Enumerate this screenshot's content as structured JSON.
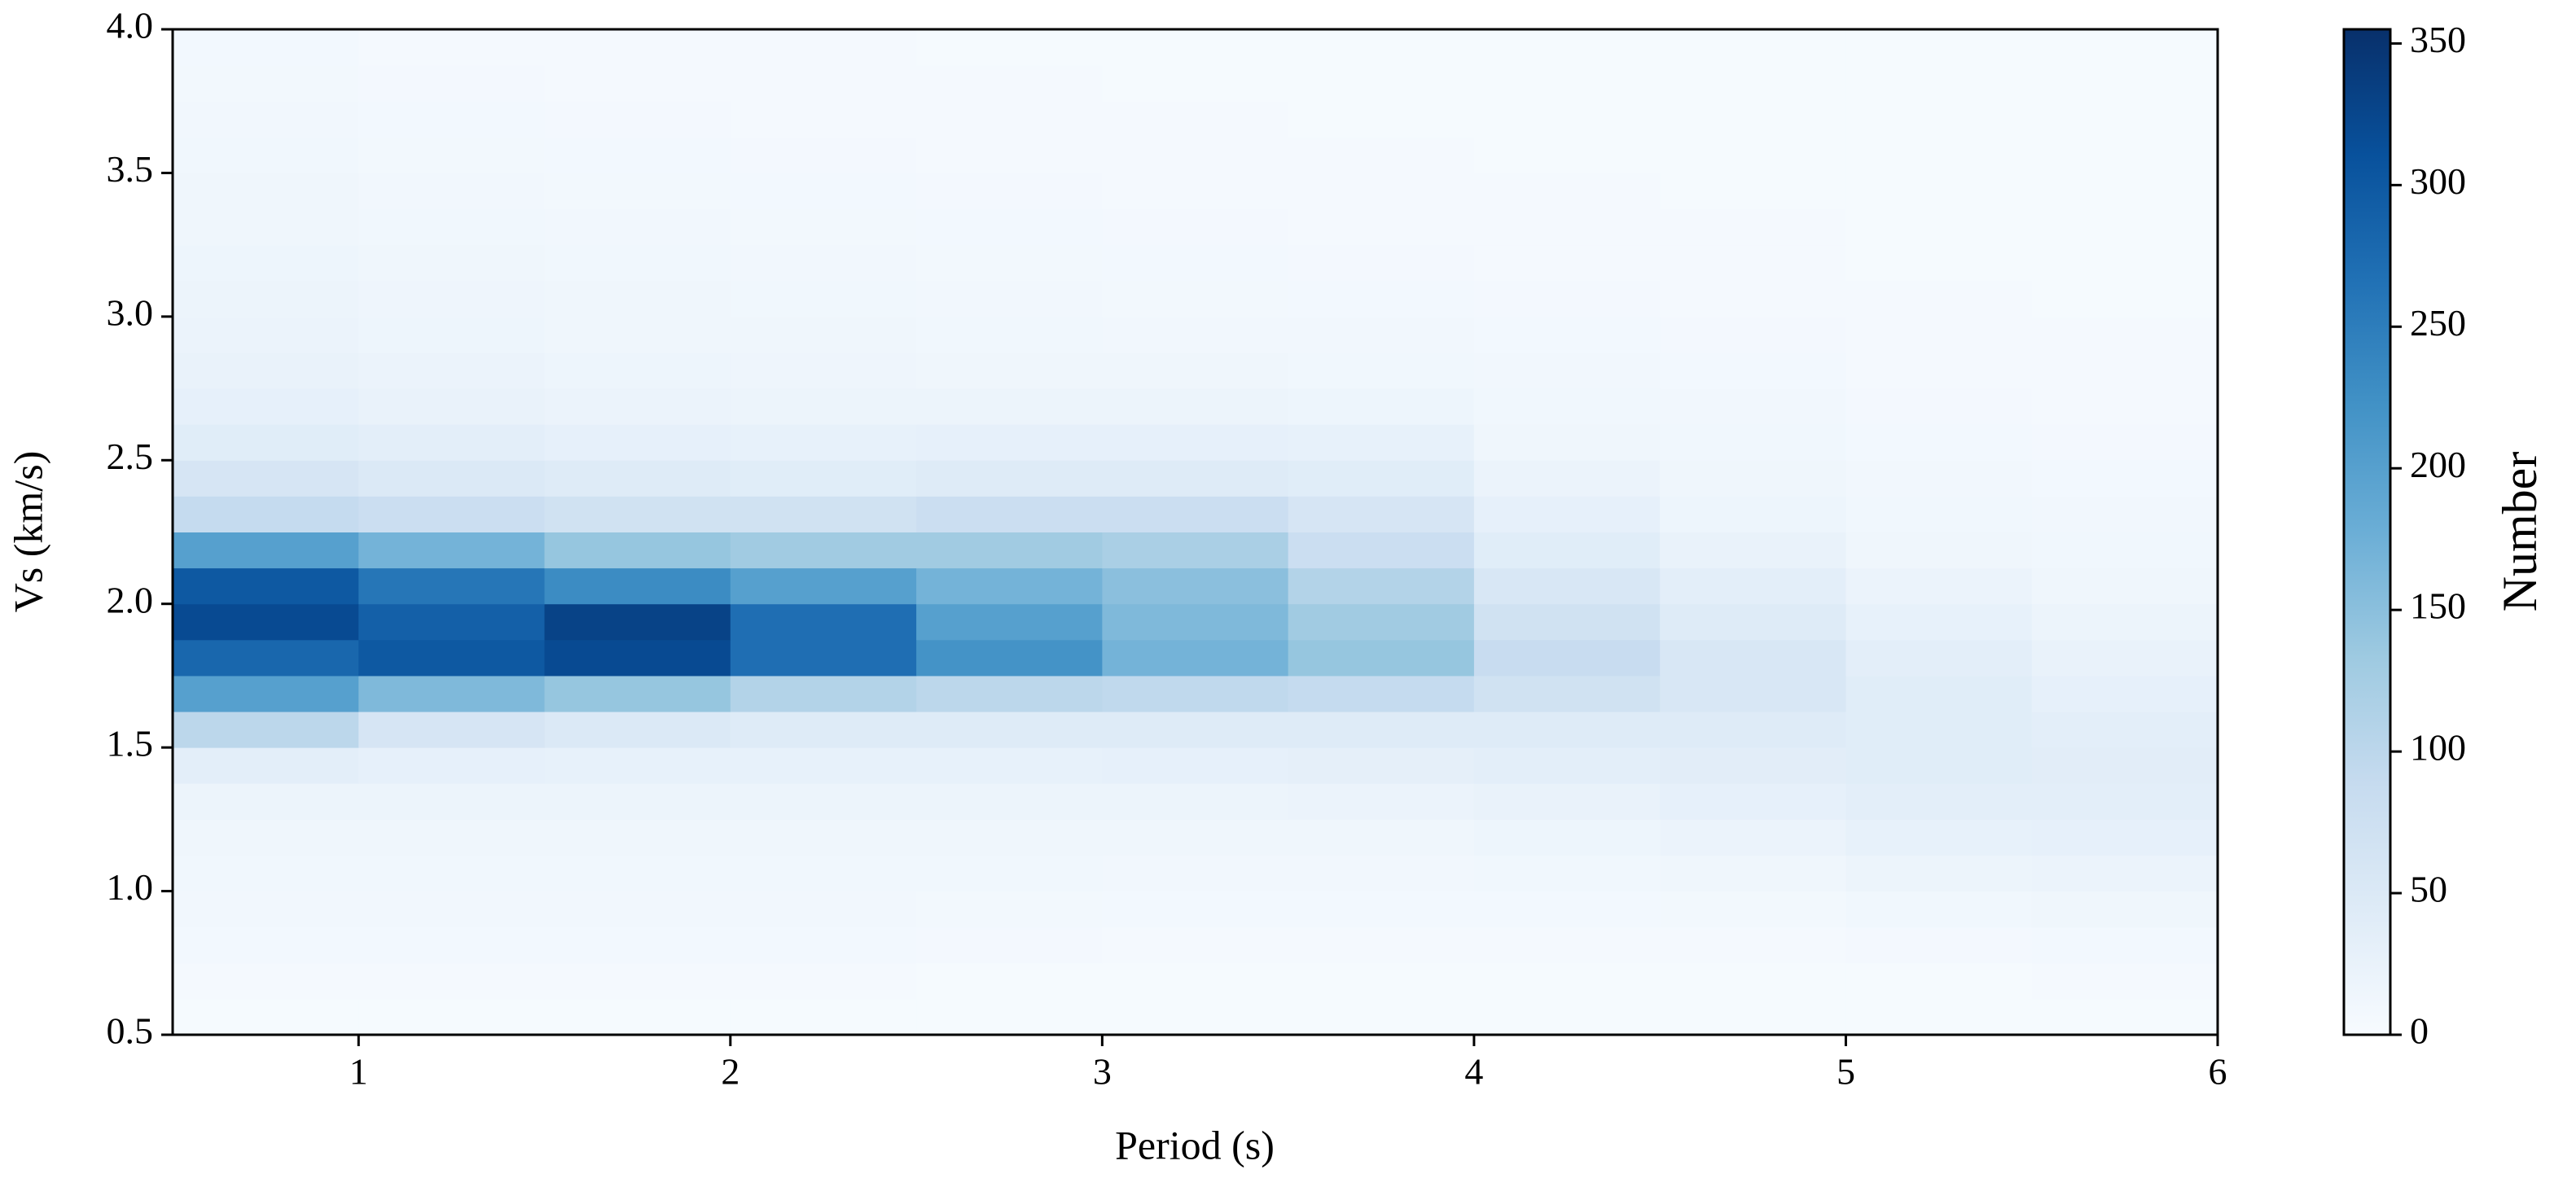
{
  "chart_data": {
    "type": "heatmap",
    "xlabel": "Period (s)",
    "ylabel": "Vs (km/s)",
    "xlim": [
      0.5,
      6
    ],
    "xticks": [
      1,
      2,
      3,
      4,
      5,
      6
    ],
    "ylim": [
      0.5,
      4
    ],
    "yticks": [
      0.5,
      {
        "value": 1,
        "label": "1.0"
      },
      1.5,
      {
        "value": 2,
        "label": "2.0"
      },
      2.5,
      {
        "value": 3,
        "label": "3.0"
      },
      3.5,
      {
        "value": 4,
        "label": "4.0"
      }
    ],
    "x_edges": [
      0.5,
      1,
      1.5,
      2,
      2.5,
      3,
      3.5,
      4,
      4.5,
      5,
      5.5,
      6
    ],
    "y_edges": [
      0.5,
      0.625,
      0.75,
      0.875,
      1,
      1.125,
      1.25,
      1.375,
      1.5,
      1.625,
      1.75,
      1.875,
      2,
      2.125,
      2.25,
      2.375,
      2.5,
      2.625,
      2.75,
      2.875,
      3,
      3.125,
      3.25,
      3.375,
      3.5,
      3.625,
      3.75,
      3.875,
      4
    ],
    "values": [
      [
        3,
        3,
        3,
        3,
        3,
        3,
        3,
        3,
        3,
        3,
        3
      ],
      [
        5,
        5,
        5,
        5,
        4,
        4,
        4,
        4,
        4,
        4,
        5
      ],
      [
        8,
        8,
        8,
        8,
        7,
        6,
        6,
        6,
        6,
        7,
        8
      ],
      [
        10,
        10,
        10,
        10,
        9,
        8,
        8,
        8,
        9,
        12,
        15
      ],
      [
        12,
        12,
        12,
        12,
        12,
        10,
        10,
        12,
        15,
        20,
        22
      ],
      [
        15,
        15,
        15,
        15,
        15,
        15,
        15,
        18,
        22,
        28,
        30
      ],
      [
        20,
        20,
        20,
        20,
        20,
        20,
        22,
        25,
        30,
        35,
        35
      ],
      [
        35,
        30,
        28,
        28,
        28,
        30,
        32,
        35,
        38,
        40,
        38
      ],
      [
        100,
        60,
        50,
        45,
        45,
        45,
        45,
        45,
        45,
        40,
        35
      ],
      [
        200,
        160,
        140,
        110,
        100,
        95,
        90,
        70,
        55,
        40,
        30
      ],
      [
        280,
        300,
        320,
        270,
        220,
        170,
        140,
        85,
        55,
        35,
        25
      ],
      [
        320,
        290,
        330,
        270,
        200,
        160,
        130,
        70,
        45,
        28,
        20
      ],
      [
        300,
        260,
        230,
        200,
        170,
        150,
        110,
        55,
        35,
        22,
        15
      ],
      [
        200,
        170,
        140,
        130,
        130,
        120,
        80,
        40,
        25,
        15,
        12
      ],
      [
        90,
        80,
        70,
        70,
        80,
        80,
        60,
        30,
        18,
        12,
        10
      ],
      [
        60,
        50,
        45,
        40,
        45,
        45,
        40,
        22,
        14,
        10,
        8
      ],
      [
        40,
        35,
        30,
        28,
        30,
        30,
        28,
        15,
        12,
        8,
        7
      ],
      [
        30,
        25,
        22,
        20,
        20,
        20,
        18,
        12,
        10,
        7,
        6
      ],
      [
        25,
        22,
        18,
        16,
        15,
        14,
        12,
        10,
        8,
        6,
        5
      ],
      [
        22,
        18,
        15,
        14,
        12,
        10,
        10,
        8,
        7,
        5,
        5
      ],
      [
        20,
        16,
        14,
        12,
        10,
        9,
        8,
        7,
        6,
        5,
        4
      ],
      [
        18,
        14,
        12,
        10,
        9,
        8,
        7,
        6,
        5,
        4,
        4
      ],
      [
        15,
        12,
        10,
        9,
        8,
        7,
        6,
        5,
        5,
        4,
        4
      ],
      [
        14,
        10,
        9,
        8,
        7,
        6,
        5,
        5,
        4,
        4,
        3
      ],
      [
        12,
        9,
        8,
        7,
        6,
        5,
        5,
        4,
        4,
        3,
        3
      ],
      [
        10,
        8,
        7,
        6,
        5,
        5,
        4,
        4,
        3,
        3,
        3
      ],
      [
        9,
        7,
        6,
        5,
        5,
        4,
        4,
        3,
        3,
        3,
        3
      ],
      [
        8,
        6,
        5,
        5,
        4,
        4,
        3,
        3,
        3,
        3,
        3
      ]
    ],
    "colormap": [
      "#f7fbff",
      "#deebf7",
      "#c6dbef",
      "#9ecae1",
      "#6baed6",
      "#4292c6",
      "#2171b5",
      "#08519c",
      "#08306b"
    ],
    "colorbar": {
      "label": "Number",
      "lim": [
        0,
        355
      ],
      "ticks": [
        0,
        50,
        100,
        150,
        200,
        250,
        300,
        350
      ]
    }
  }
}
